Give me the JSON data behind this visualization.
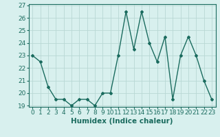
{
  "x": [
    0,
    1,
    2,
    3,
    4,
    5,
    6,
    7,
    8,
    9,
    10,
    11,
    12,
    13,
    14,
    15,
    16,
    17,
    18,
    19,
    20,
    21,
    22,
    23
  ],
  "y": [
    23,
    22.5,
    20.5,
    19.5,
    19.5,
    19,
    19.5,
    19.5,
    19,
    20,
    20,
    23,
    26.5,
    23.5,
    26.5,
    24,
    22.5,
    24.5,
    19.5,
    23,
    24.5,
    23,
    21,
    19.5
  ],
  "line_color": "#1a6b5e",
  "bg_color": "#d8f0ee",
  "grid_color": "#b8d8d4",
  "xlabel": "Humidex (Indice chaleur)",
  "ylim_min": 19,
  "ylim_max": 27,
  "xlim_min": -0.5,
  "xlim_max": 23.5,
  "yticks": [
    19,
    20,
    21,
    22,
    23,
    24,
    25,
    26,
    27
  ],
  "xticks": [
    0,
    1,
    2,
    3,
    4,
    5,
    6,
    7,
    8,
    9,
    10,
    11,
    12,
    13,
    14,
    15,
    16,
    17,
    18,
    19,
    20,
    21,
    22,
    23
  ],
  "marker": "D",
  "marker_size": 2.0,
  "line_width": 1.0,
  "tick_fontsize": 6.5,
  "xlabel_fontsize": 7.5
}
